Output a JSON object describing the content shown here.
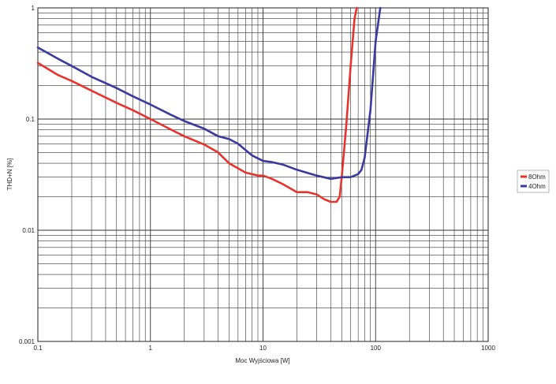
{
  "chart_data": {
    "type": "line",
    "title": "",
    "xlabel": "Moc Wyjściowa [W]",
    "ylabel": "THD+N [%]",
    "x_scale": "log",
    "y_scale": "log",
    "xlim": [
      0.1,
      1000
    ],
    "ylim": [
      0.001,
      1
    ],
    "x_ticks": [
      "0.1",
      "1",
      "10",
      "100",
      "1000"
    ],
    "y_ticks": [
      "0.001",
      "0.01",
      "0.1",
      "1"
    ],
    "grid": true,
    "legend_position": "right",
    "series": [
      {
        "name": "8Ohm",
        "color": "#e8332c",
        "x": [
          0.1,
          0.15,
          0.2,
          0.3,
          0.5,
          0.7,
          1,
          1.5,
          2,
          3,
          4,
          5,
          7,
          9,
          10,
          12,
          15,
          20,
          25,
          30,
          35,
          40,
          45,
          48,
          50,
          55,
          60,
          65,
          68
        ],
        "y": [
          0.32,
          0.25,
          0.22,
          0.18,
          0.14,
          0.12,
          0.1,
          0.081,
          0.07,
          0.059,
          0.05,
          0.04,
          0.033,
          0.031,
          0.031,
          0.029,
          0.026,
          0.022,
          0.022,
          0.021,
          0.019,
          0.018,
          0.018,
          0.02,
          0.03,
          0.09,
          0.3,
          0.8,
          1.0
        ]
      },
      {
        "name": "4Ohm",
        "color": "#3a3aa0",
        "x": [
          0.1,
          0.15,
          0.2,
          0.3,
          0.5,
          0.7,
          1,
          1.5,
          2,
          3,
          4,
          5,
          6,
          8,
          10,
          12,
          15,
          20,
          30,
          40,
          50,
          60,
          70,
          75,
          80,
          90,
          100,
          110
        ],
        "y": [
          0.44,
          0.35,
          0.3,
          0.24,
          0.19,
          0.16,
          0.135,
          0.11,
          0.096,
          0.082,
          0.07,
          0.066,
          0.06,
          0.047,
          0.042,
          0.041,
          0.039,
          0.035,
          0.031,
          0.029,
          0.03,
          0.03,
          0.032,
          0.035,
          0.045,
          0.12,
          0.5,
          1.0
        ]
      }
    ]
  }
}
